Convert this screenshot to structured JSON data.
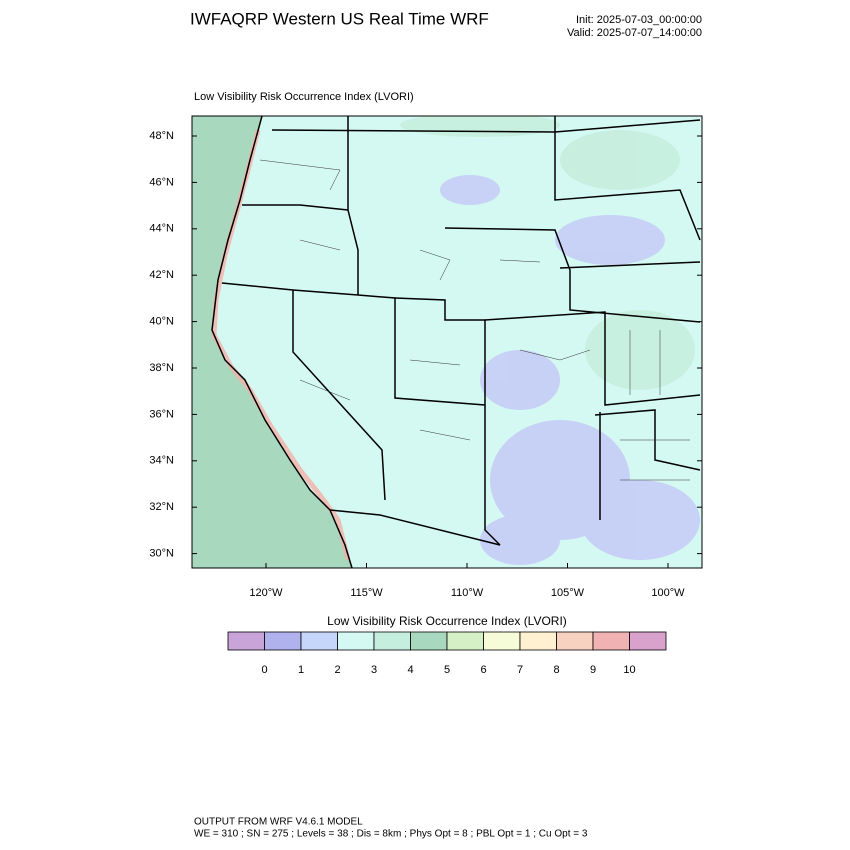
{
  "header": {
    "title": "IWFAQRP Western US Real Time WRF",
    "init": "Init: 2025-07-03_00:00:00",
    "valid": "Valid: 2025-07-07_14:00:00"
  },
  "map": {
    "subtitle": "Low Visibility Risk Occurrence Index   (LVORI)",
    "lat_ticks": [
      {
        "value": 48,
        "label": "48°N"
      },
      {
        "value": 46,
        "label": "46°N"
      },
      {
        "value": 44,
        "label": "44°N"
      },
      {
        "value": 42,
        "label": "42°N"
      },
      {
        "value": 40,
        "label": "40°N"
      },
      {
        "value": 38,
        "label": "38°N"
      },
      {
        "value": 36,
        "label": "36°N"
      },
      {
        "value": 34,
        "label": "34°N"
      },
      {
        "value": 32,
        "label": "32°N"
      },
      {
        "value": 30,
        "label": "30°N"
      }
    ],
    "lon_ticks": [
      {
        "value": -120,
        "label": "120°W"
      },
      {
        "value": -115,
        "label": "115°W"
      },
      {
        "value": -110,
        "label": "110°W"
      },
      {
        "value": -105,
        "label": "105°W"
      },
      {
        "value": -100,
        "label": "100°W"
      }
    ]
  },
  "colorbar": {
    "title": "Low Visibility Risk Occurrence Index  (LVORI)",
    "colors": [
      "#c8a4d8",
      "#b0b2ee",
      "#c6d6fa",
      "#d4f8f2",
      "#c6eede",
      "#a8d8be",
      "#d6f0c6",
      "#f6fcd8",
      "#fff0d2",
      "#f8d2c0",
      "#f0b2b2",
      "#d8a2cc"
    ],
    "ticks": [
      0,
      1,
      2,
      3,
      4,
      5,
      6,
      7,
      8,
      9,
      10
    ]
  },
  "footer": {
    "line1": "OUTPUT FROM WRF V4.6.1 MODEL",
    "line2": "WE = 310 ; SN = 275 ; Levels = 38 ; Dis = 8km ; Phys Opt = 8 ; PBL Opt = 1 ; Cu Opt = 3"
  }
}
